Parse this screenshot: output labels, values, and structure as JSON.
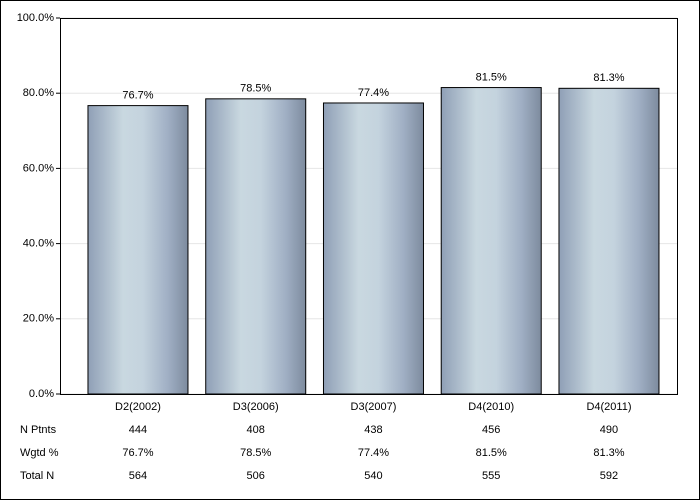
{
  "chart_data": {
    "type": "bar",
    "categories": [
      "D2(2002)",
      "D3(2006)",
      "D3(2007)",
      "D4(2010)",
      "D4(2011)"
    ],
    "values": [
      76.7,
      78.5,
      77.4,
      81.5,
      81.3
    ],
    "value_labels": [
      "76.7%",
      "78.5%",
      "77.4%",
      "81.5%",
      "81.3%"
    ],
    "ylim": [
      0,
      100
    ],
    "yticks": [
      {
        "value": 0,
        "label": "0.0%"
      },
      {
        "value": 20,
        "label": "20.0%"
      },
      {
        "value": 40,
        "label": "40.0%"
      },
      {
        "value": 60,
        "label": "60.0%"
      },
      {
        "value": 80,
        "label": "80.0%"
      },
      {
        "value": 100,
        "label": "100.0%"
      }
    ],
    "grid": true,
    "table": {
      "rows": [
        {
          "label": "N Ptnts",
          "cells": [
            "444",
            "408",
            "438",
            "456",
            "490"
          ]
        },
        {
          "label": "Wgtd %",
          "cells": [
            "76.7%",
            "78.5%",
            "77.4%",
            "81.5%",
            "81.3%"
          ]
        },
        {
          "label": "Total N",
          "cells": [
            "564",
            "506",
            "540",
            "555",
            "592"
          ]
        }
      ]
    }
  }
}
